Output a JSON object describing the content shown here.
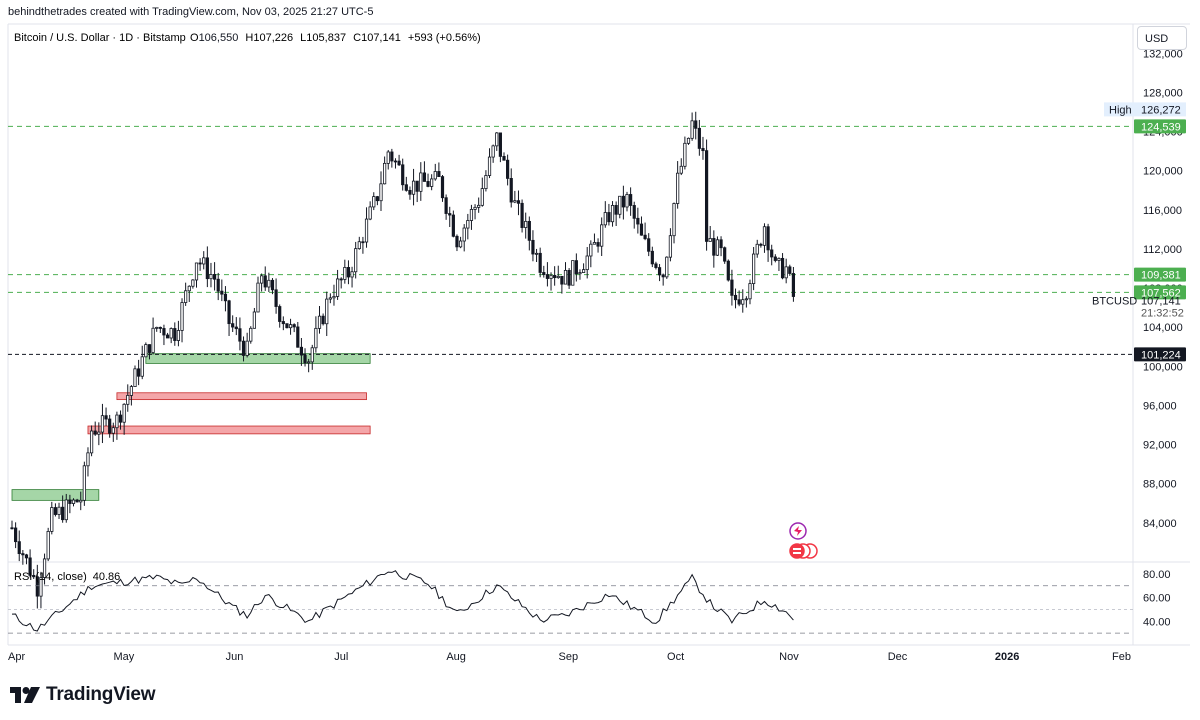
{
  "watermark": "behindthetrades created with TradingView.com, Nov 03, 2025 21:27 UTC-5",
  "header": {
    "symbol": "Bitcoin / U.S. Dollar · 1D · Bitstamp",
    "o_label": "O",
    "o": "106,550",
    "h_label": "H",
    "h": "107,226",
    "l_label": "L",
    "l": "105,837",
    "c_label": "C",
    "c": "107,141",
    "change": "+593 (+0.56%)"
  },
  "currency_button": "USD",
  "brand": "TradingView",
  "colors": {
    "up": "#089981",
    "down": "#f23645",
    "candle": "#131722",
    "demand": "#a5d6a7",
    "demand_border": "#2e7d32",
    "supply": "#f4a6a9",
    "supply_border": "#c62828",
    "green_badge": "#4caf50",
    "black_badge": "#131722",
    "grid_dash": "#4caf50"
  },
  "chart_data": {
    "type": "candlestick",
    "symbol": "BTCUSD",
    "timeframe": "1D",
    "exchange": "Bitstamp",
    "ylim": [
      80000,
      135000
    ],
    "y_ticks": [
      84000,
      88000,
      92000,
      96000,
      100000,
      104000,
      108000,
      112000,
      116000,
      120000,
      124000,
      128000,
      132000
    ],
    "y_tick_labels": [
      "84,000",
      "88,000",
      "92,000",
      "96,000",
      "100,000",
      "104,000",
      "108,000",
      "112,000",
      "116,000",
      "120,000",
      "124,000",
      "128,000",
      "132,000"
    ],
    "x_labels": [
      "Apr",
      "May",
      "Jun",
      "Jul",
      "Aug",
      "Sep",
      "Oct",
      "Nov",
      "Dec",
      "2026",
      "Feb"
    ],
    "x_label_dates": [
      "2025-04-01",
      "2025-05-01",
      "2025-06-01",
      "2025-07-01",
      "2025-08-01",
      "2025-09-01",
      "2025-10-01",
      "2025-11-01",
      "2025-12-01",
      "2026-01-01",
      "2026-02-01"
    ],
    "x_range": [
      "2025-04-01",
      "2026-02-01"
    ],
    "price_path": [
      [
        "2025-04-01",
        83500
      ],
      [
        "2025-04-08",
        77500
      ],
      [
        "2025-04-12",
        84500
      ],
      [
        "2025-04-20",
        86500
      ],
      [
        "2025-04-23",
        93500
      ],
      [
        "2025-04-30",
        94500
      ],
      [
        "2025-05-08",
        101500
      ],
      [
        "2025-05-11",
        104000
      ],
      [
        "2025-05-16",
        103500
      ],
      [
        "2025-05-22",
        111000
      ],
      [
        "2025-05-27",
        109000
      ],
      [
        "2025-05-31",
        104500
      ],
      [
        "2025-06-05",
        101500
      ],
      [
        "2025-06-09",
        109500
      ],
      [
        "2025-06-14",
        105500
      ],
      [
        "2025-06-22",
        100800
      ],
      [
        "2025-06-28",
        107500
      ],
      [
        "2025-07-03",
        109500
      ],
      [
        "2025-07-11",
        117500
      ],
      [
        "2025-07-14",
        122000
      ],
      [
        "2025-07-20",
        118500
      ],
      [
        "2025-07-28",
        119000
      ],
      [
        "2025-08-02",
        113000
      ],
      [
        "2025-08-08",
        117000
      ],
      [
        "2025-08-13",
        123300
      ],
      [
        "2025-08-18",
        116500
      ],
      [
        "2025-08-25",
        110500
      ],
      [
        "2025-09-01",
        109000
      ],
      [
        "2025-09-08",
        111500
      ],
      [
        "2025-09-13",
        115500
      ],
      [
        "2025-09-18",
        117000
      ],
      [
        "2025-09-22",
        113000
      ],
      [
        "2025-09-28",
        109500
      ],
      [
        "2025-10-02",
        119000
      ],
      [
        "2025-10-06",
        124800
      ],
      [
        "2025-10-09",
        121500
      ],
      [
        "2025-10-10",
        113000
      ],
      [
        "2025-10-14",
        111500
      ],
      [
        "2025-10-17",
        106500
      ],
      [
        "2025-10-21",
        108000
      ],
      [
        "2025-10-26",
        114500
      ],
      [
        "2025-10-29",
        110000
      ],
      [
        "2025-11-01",
        110000
      ],
      [
        "2025-11-03",
        107141
      ]
    ],
    "high": {
      "label": "High",
      "value": "126,272"
    },
    "horizontal_lines": [
      {
        "value": 124539,
        "label": "124,539",
        "style": "dashed-green"
      },
      {
        "value": 109381,
        "label": "109,381",
        "style": "dashed-green"
      },
      {
        "value": 107562,
        "label": "107,562",
        "style": "dashed-green"
      },
      {
        "value": 101224,
        "label": "101,224",
        "style": "dashed-black"
      }
    ],
    "last_price": {
      "label": "BTCUSD",
      "value": "107,141",
      "countdown": "21:32:52"
    },
    "zones": [
      {
        "kind": "demand",
        "start": "2025-05-08",
        "end": "2025-07-09",
        "low": 100300,
        "high": 101300
      },
      {
        "kind": "supply",
        "start": "2025-04-30",
        "end": "2025-07-08",
        "low": 96600,
        "high": 97300
      },
      {
        "kind": "supply",
        "start": "2025-04-22",
        "end": "2025-07-09",
        "low": 93100,
        "high": 93900
      },
      {
        "kind": "demand",
        "start": "2025-04-01",
        "end": "2025-04-25",
        "low": 86300,
        "high": 87400
      }
    ],
    "rsi": {
      "label": "RSI (14, close)",
      "value": "40.86",
      "ylim": [
        20,
        90
      ],
      "levels": [
        30,
        50,
        70
      ],
      "ticks": [
        80,
        60,
        40
      ],
      "tick_labels": [
        "80.00",
        "60.00",
        "40.00"
      ],
      "path": [
        [
          "2025-04-01",
          45
        ],
        [
          "2025-04-08",
          33
        ],
        [
          "2025-04-15",
          50
        ],
        [
          "2025-04-23",
          70
        ],
        [
          "2025-05-01",
          73
        ],
        [
          "2025-05-11",
          77
        ],
        [
          "2025-05-18",
          70
        ],
        [
          "2025-05-22",
          77
        ],
        [
          "2025-06-01",
          52
        ],
        [
          "2025-06-05",
          45
        ],
        [
          "2025-06-10",
          62
        ],
        [
          "2025-06-22",
          40
        ],
        [
          "2025-07-01",
          58
        ],
        [
          "2025-07-14",
          83
        ],
        [
          "2025-07-25",
          72
        ],
        [
          "2025-08-02",
          46
        ],
        [
          "2025-08-13",
          70
        ],
        [
          "2025-08-25",
          41
        ],
        [
          "2025-09-01",
          45
        ],
        [
          "2025-09-13",
          63
        ],
        [
          "2025-09-26",
          40
        ],
        [
          "2025-10-06",
          76
        ],
        [
          "2025-10-11",
          55
        ],
        [
          "2025-10-17",
          40
        ],
        [
          "2025-10-26",
          58
        ],
        [
          "2025-11-01",
          48
        ],
        [
          "2025-11-03",
          41
        ]
      ]
    }
  }
}
